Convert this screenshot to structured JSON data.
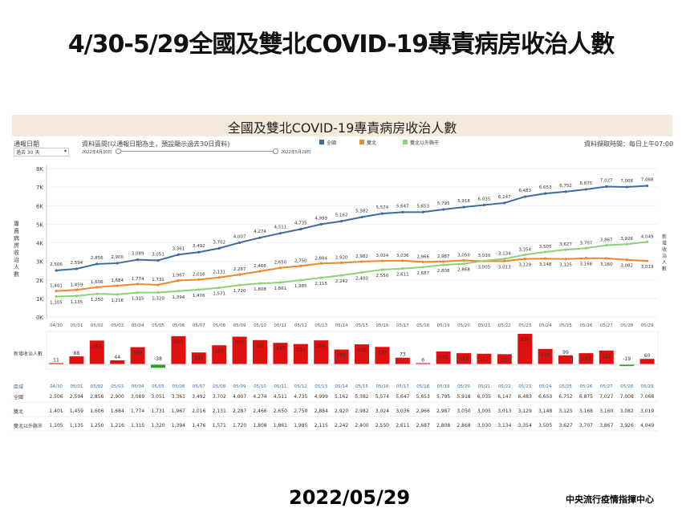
{
  "slide_title": "4/30-5/29全國及雙北COVID-19專責病房收治人數",
  "footer": {
    "date": "2022/05/29",
    "org": "中央流行疫情指揮中心"
  },
  "controls": {
    "date_label": "通報日期",
    "date_select": "過去 30 天",
    "range_label": "資料區間(以通報日期為主，預設顯示過去30日資料)",
    "range_start": "2022年4月30日",
    "range_end": "2022年5月29日",
    "update_time": "資料擷取時間：每日上午07:00"
  },
  "colors": {
    "national": "#3f6c9e",
    "taipei": "#f0882a",
    "outside": "#8fd07a",
    "bar_pos": "#e01010",
    "bar_neg": "#2aa02a"
  },
  "chart_data": {
    "type": "line",
    "title": "全國及雙北COVID-19專責病房收治人數",
    "ylabel": "專責病房收治人數",
    "ylabel_right": "新增收治人數",
    "ylim": [
      0,
      8000
    ],
    "yticks": [
      "0K",
      "1K",
      "2K",
      "3K",
      "4K",
      "5K",
      "6K",
      "7K",
      "8K"
    ],
    "legend_position": "top",
    "categories": [
      "04/30",
      "05/01",
      "05/02",
      "05/03",
      "05/04",
      "05/05",
      "05/06",
      "05/07",
      "05/08",
      "05/09",
      "05/10",
      "05/11",
      "05/12",
      "05/13",
      "05/14",
      "05/15",
      "05/16",
      "05/17",
      "05/18",
      "05/19",
      "05/20",
      "05/21",
      "05/22",
      "05/23",
      "05/24",
      "05/25",
      "05/26",
      "05/27",
      "05/28",
      "05/29"
    ],
    "series": [
      {
        "name": "全國",
        "values": [
          2506,
          2594,
          2856,
          2900,
          3089,
          3051,
          3361,
          3492,
          3702,
          4007,
          4274,
          4511,
          4735,
          4999,
          5162,
          5382,
          5574,
          5647,
          5653,
          5795,
          5918,
          6035,
          6147,
          6483,
          6653,
          6752,
          6875,
          7027,
          7008,
          7068
        ]
      },
      {
        "name": "雙北",
        "values": [
          1401,
          1459,
          1606,
          1684,
          1774,
          1731,
          1967,
          2016,
          2131,
          2287,
          2466,
          2650,
          2750,
          2884,
          2920,
          2982,
          3024,
          3036,
          2966,
          2987,
          3050,
          3005,
          3013,
          3129,
          3148,
          3125,
          3168,
          3160,
          3082,
          3019
        ]
      },
      {
        "name": "雙北以外縣市",
        "values": [
          1105,
          1135,
          1250,
          1216,
          1315,
          1320,
          1394,
          1476,
          1571,
          1720,
          1808,
          1861,
          1985,
          2115,
          2242,
          2400,
          2550,
          2611,
          2687,
          2808,
          2868,
          3030,
          3134,
          3354,
          3505,
          3627,
          3707,
          3867,
          3926,
          4049
        ]
      }
    ],
    "bar_label": "新增收治人數",
    "bars": [
      11,
      88,
      262,
      44,
      189,
      -38,
      310,
      131,
      210,
      305,
      267,
      237,
      224,
      264,
      163,
      220,
      192,
      73,
      6,
      142,
      123,
      117,
      112,
      336,
      170,
      99,
      123,
      152,
      -19,
      60
    ],
    "table_header": "區域"
  }
}
